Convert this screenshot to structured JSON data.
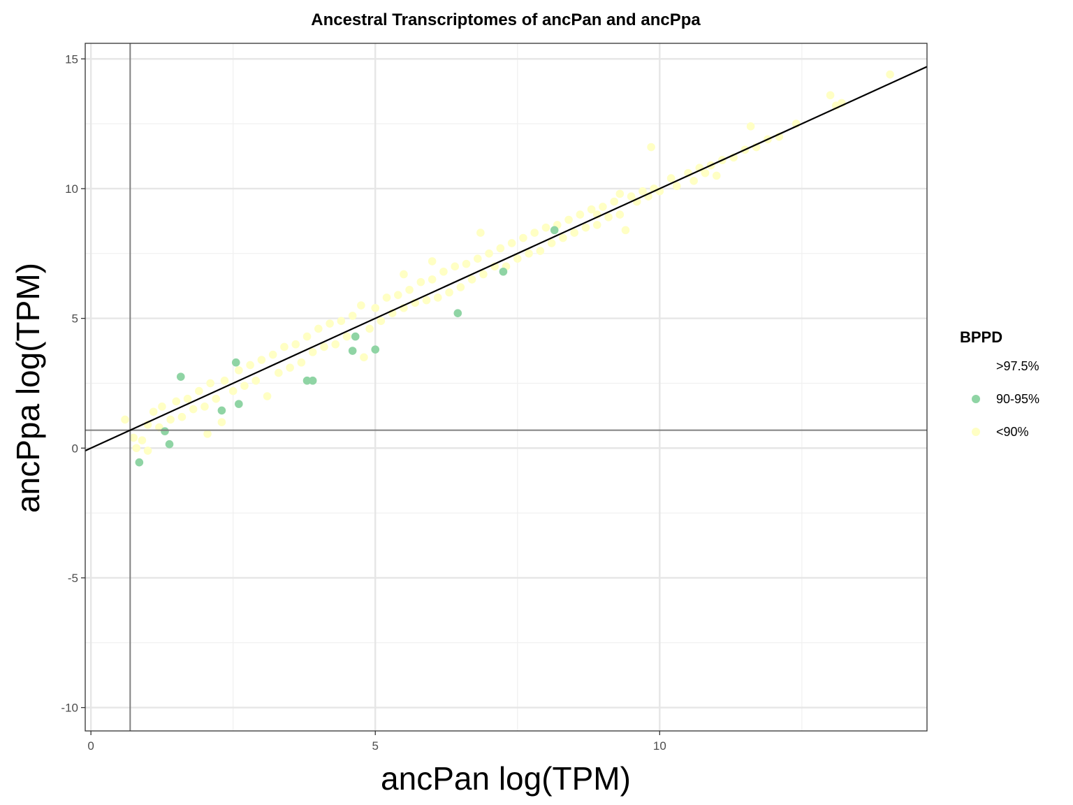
{
  "chart_data": {
    "type": "scatter",
    "title": "Ancestral Transcriptomes of ancPan and ancPpa",
    "xlabel": "ancPan log(TPM)",
    "ylabel": "ancPpa log(TPM)",
    "xlim": [
      -0.1,
      14.7
    ],
    "ylim": [
      -10.9,
      15.6
    ],
    "x_ticks": [
      0,
      5,
      10
    ],
    "x_tick_labels": [
      "0",
      "5",
      "10"
    ],
    "y_ticks": [
      -10,
      -5,
      0,
      5,
      10,
      15
    ],
    "y_tick_labels": [
      "-10",
      "-5",
      "0",
      "5",
      "10",
      "15"
    ],
    "grid": true,
    "legend_position": "right",
    "legend_title": "BPPD",
    "reference_lines": {
      "vertical_x": 0.69,
      "horizontal_y": 0.69,
      "identity_line": {
        "slope": 1,
        "intercept": 0
      },
      "threshold_line_color": "#808080",
      "identity_line_color": "#000000"
    },
    "series": [
      {
        "name": ">97.5%",
        "color": "#FFFFFF",
        "points": []
      },
      {
        "name": "90-95%",
        "color": "#8FD4A4",
        "points": [
          [
            0.85,
            -0.55
          ],
          [
            1.3,
            0.65
          ],
          [
            1.38,
            0.15
          ],
          [
            1.58,
            2.75
          ],
          [
            2.3,
            1.45
          ],
          [
            2.55,
            3.3
          ],
          [
            2.6,
            1.7
          ],
          [
            3.8,
            2.6
          ],
          [
            3.9,
            2.6
          ],
          [
            4.6,
            3.75
          ],
          [
            4.65,
            4.3
          ],
          [
            5.0,
            3.8
          ],
          [
            6.45,
            5.2
          ],
          [
            7.25,
            6.8
          ],
          [
            8.15,
            8.4
          ]
        ]
      },
      {
        "name": "<90%",
        "color": "#FFFFC4",
        "points": [
          [
            0.6,
            1.1
          ],
          [
            0.75,
            0.4
          ],
          [
            0.8,
            0.0
          ],
          [
            0.9,
            0.3
          ],
          [
            1.0,
            -0.1
          ],
          [
            1.0,
            0.9
          ],
          [
            1.1,
            1.4
          ],
          [
            1.2,
            0.8
          ],
          [
            1.25,
            1.6
          ],
          [
            1.4,
            1.1
          ],
          [
            1.5,
            1.8
          ],
          [
            1.6,
            1.2
          ],
          [
            1.7,
            1.9
          ],
          [
            1.8,
            1.5
          ],
          [
            1.9,
            2.2
          ],
          [
            2.0,
            1.6
          ],
          [
            2.05,
            0.55
          ],
          [
            2.1,
            2.5
          ],
          [
            2.2,
            1.9
          ],
          [
            2.3,
            1.0
          ],
          [
            2.35,
            2.6
          ],
          [
            2.5,
            2.2
          ],
          [
            2.6,
            3.0
          ],
          [
            2.7,
            2.4
          ],
          [
            2.8,
            3.2
          ],
          [
            2.9,
            2.6
          ],
          [
            3.0,
            3.4
          ],
          [
            3.1,
            2.0
          ],
          [
            3.2,
            3.6
          ],
          [
            3.3,
            2.9
          ],
          [
            3.4,
            3.9
          ],
          [
            3.5,
            3.1
          ],
          [
            3.6,
            4.0
          ],
          [
            3.7,
            3.3
          ],
          [
            3.8,
            4.3
          ],
          [
            3.9,
            3.7
          ],
          [
            4.0,
            4.6
          ],
          [
            4.1,
            3.9
          ],
          [
            4.2,
            4.8
          ],
          [
            4.3,
            4.0
          ],
          [
            4.4,
            4.9
          ],
          [
            4.5,
            4.3
          ],
          [
            4.6,
            5.1
          ],
          [
            4.75,
            5.5
          ],
          [
            4.8,
            3.5
          ],
          [
            4.9,
            4.6
          ],
          [
            5.0,
            5.4
          ],
          [
            5.1,
            4.9
          ],
          [
            5.2,
            5.8
          ],
          [
            5.3,
            5.2
          ],
          [
            5.4,
            5.9
          ],
          [
            5.5,
            5.4
          ],
          [
            5.5,
            6.7
          ],
          [
            5.6,
            6.1
          ],
          [
            5.7,
            5.6
          ],
          [
            5.8,
            6.4
          ],
          [
            5.9,
            5.7
          ],
          [
            6.0,
            7.2
          ],
          [
            6.0,
            6.5
          ],
          [
            6.1,
            5.8
          ],
          [
            6.2,
            6.8
          ],
          [
            6.3,
            6.0
          ],
          [
            6.4,
            7.0
          ],
          [
            6.5,
            6.2
          ],
          [
            6.6,
            7.1
          ],
          [
            6.7,
            6.5
          ],
          [
            6.8,
            7.3
          ],
          [
            6.85,
            8.3
          ],
          [
            6.9,
            6.7
          ],
          [
            7.0,
            7.5
          ],
          [
            7.1,
            7.0
          ],
          [
            7.2,
            7.7
          ],
          [
            7.3,
            7.0
          ],
          [
            7.4,
            7.9
          ],
          [
            7.5,
            7.3
          ],
          [
            7.6,
            8.1
          ],
          [
            7.7,
            7.5
          ],
          [
            7.8,
            8.3
          ],
          [
            7.9,
            7.6
          ],
          [
            8.0,
            8.5
          ],
          [
            8.1,
            7.9
          ],
          [
            8.2,
            8.6
          ],
          [
            8.3,
            8.1
          ],
          [
            8.4,
            8.8
          ],
          [
            8.5,
            8.3
          ],
          [
            8.6,
            9.0
          ],
          [
            8.7,
            8.5
          ],
          [
            8.8,
            9.2
          ],
          [
            8.9,
            8.6
          ],
          [
            8.9,
            9.0
          ],
          [
            9.0,
            9.3
          ],
          [
            9.1,
            8.9
          ],
          [
            9.2,
            9.5
          ],
          [
            9.3,
            9.0
          ],
          [
            9.3,
            9.8
          ],
          [
            9.4,
            8.4
          ],
          [
            9.5,
            9.7
          ],
          [
            9.6,
            9.5
          ],
          [
            9.7,
            9.9
          ],
          [
            9.8,
            9.7
          ],
          [
            9.85,
            11.6
          ],
          [
            9.9,
            10.0
          ],
          [
            10.0,
            9.9
          ],
          [
            10.2,
            10.4
          ],
          [
            10.3,
            10.1
          ],
          [
            10.5,
            10.6
          ],
          [
            10.6,
            10.3
          ],
          [
            10.7,
            10.8
          ],
          [
            10.8,
            10.6
          ],
          [
            10.9,
            10.9
          ],
          [
            11.0,
            10.5
          ],
          [
            11.1,
            11.1
          ],
          [
            11.3,
            11.2
          ],
          [
            11.5,
            11.5
          ],
          [
            11.6,
            12.4
          ],
          [
            11.7,
            11.6
          ],
          [
            11.9,
            11.9
          ],
          [
            12.1,
            12.0
          ],
          [
            12.4,
            12.5
          ],
          [
            13.0,
            13.6
          ],
          [
            13.1,
            13.2
          ],
          [
            13.2,
            13.3
          ],
          [
            14.05,
            14.4
          ]
        ]
      }
    ]
  }
}
